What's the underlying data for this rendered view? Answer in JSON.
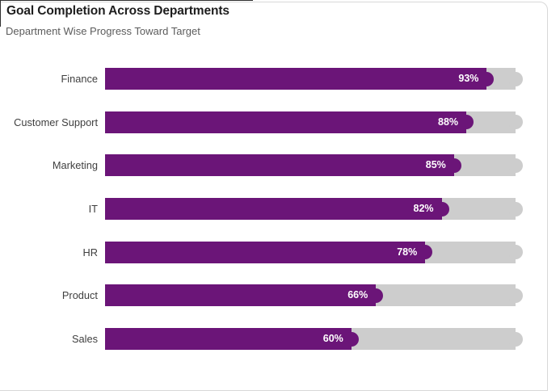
{
  "card": {
    "title": "Goal Completion Across Departments",
    "subtitle": "Department Wise Progress Toward Target"
  },
  "colors": {
    "bar": "#6B1578",
    "track": "#CDCDCD",
    "title": "#1E1E1E",
    "subtitle": "#5C5C5C",
    "category_label": "#3F3F3F",
    "value_text": "#FFFFFF",
    "card_border": "#D8D8D8",
    "title_outline": "#2E2E2E"
  },
  "chart_data": {
    "type": "bar",
    "orientation": "horizontal",
    "title": "Goal Completion Across Departments",
    "subtitle": "Department Wise Progress Toward Target",
    "categories": [
      "Finance",
      "Customer Support",
      "Marketing",
      "IT",
      "HR",
      "Product",
      "Sales"
    ],
    "values": [
      93,
      88,
      85,
      82,
      78,
      66,
      60
    ],
    "value_suffix": "%",
    "value_labels": [
      "93%",
      "88%",
      "85%",
      "82%",
      "78%",
      "66%",
      "60%"
    ],
    "xlim": [
      0,
      100
    ],
    "grid": false,
    "legend": false,
    "track_full_value": 100
  }
}
